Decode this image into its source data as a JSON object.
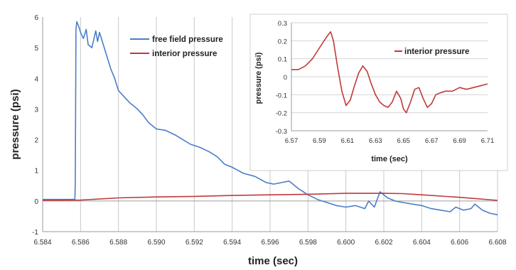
{
  "chart_data": [
    {
      "type": "line",
      "xlabel": "time (sec)",
      "ylabel": "pressure (psi)",
      "xlim": [
        6.584,
        6.608
      ],
      "ylim": [
        -1,
        6
      ],
      "x_ticks": [
        "6.584",
        "6.586",
        "6.588",
        "6.590",
        "6.592",
        "6.594",
        "6.596",
        "6.598",
        "6.600",
        "6.602",
        "6.604",
        "6.606",
        "6.608"
      ],
      "y_ticks": [
        "-1",
        "0",
        "1",
        "2",
        "3",
        "4",
        "5",
        "6"
      ],
      "grid": "vertical",
      "legend_position": "top-center",
      "series": [
        {
          "name": "free field pressure",
          "color": "#4a7ec8",
          "x": [
            6.584,
            6.5857,
            6.58572,
            6.58576,
            6.5858,
            6.5859,
            6.586,
            6.58615,
            6.5863,
            6.5864,
            6.5866,
            6.5868,
            6.5869,
            6.587,
            6.5873,
            6.5876,
            6.5878,
            6.588,
            6.5883,
            6.5886,
            6.589,
            6.5893,
            6.5896,
            6.59,
            6.5905,
            6.591,
            6.5914,
            6.5918,
            6.5923,
            6.5928,
            6.5932,
            6.5936,
            6.594,
            6.5946,
            6.5952,
            6.5958,
            6.5962,
            6.5966,
            6.597,
            6.5975,
            6.598,
            6.5985,
            6.599,
            6.5995,
            6.6,
            6.6005,
            6.601,
            6.6012,
            6.6015,
            6.6018,
            6.6022,
            6.6026,
            6.603,
            6.6035,
            6.604,
            6.6045,
            6.605,
            6.6055,
            6.6058,
            6.6062,
            6.6066,
            6.6068,
            6.6072,
            6.6076,
            6.608
          ],
          "y": [
            0.05,
            0.05,
            0.5,
            5.6,
            5.85,
            5.7,
            5.5,
            5.3,
            5.6,
            5.1,
            5.0,
            5.55,
            5.2,
            5.5,
            4.9,
            4.3,
            4.0,
            3.6,
            3.4,
            3.2,
            3.0,
            2.8,
            2.55,
            2.35,
            2.3,
            2.15,
            2.0,
            1.85,
            1.75,
            1.6,
            1.45,
            1.2,
            1.1,
            0.9,
            0.8,
            0.6,
            0.55,
            0.6,
            0.65,
            0.4,
            0.2,
            0.05,
            -0.05,
            -0.15,
            -0.2,
            -0.15,
            -0.25,
            0.0,
            -0.2,
            0.3,
            0.1,
            0.0,
            -0.05,
            -0.1,
            -0.15,
            -0.25,
            -0.3,
            -0.35,
            -0.2,
            -0.3,
            -0.25,
            -0.1,
            -0.3,
            -0.4,
            -0.45
          ]
        },
        {
          "name": "interior pressure",
          "color": "#c0393b",
          "x": [
            6.584,
            6.586,
            6.588,
            6.59,
            6.592,
            6.594,
            6.596,
            6.598,
            6.6,
            6.602,
            6.603,
            6.604,
            6.606,
            6.608
          ],
          "y": [
            0.02,
            0.03,
            0.1,
            0.13,
            0.15,
            0.18,
            0.2,
            0.22,
            0.25,
            0.25,
            0.24,
            0.2,
            0.12,
            0.02
          ]
        }
      ]
    },
    {
      "type": "line",
      "xlabel": "time (sec)",
      "ylabel": "pressure (psi)",
      "xlim": [
        6.57,
        6.71
      ],
      "ylim": [
        -0.3,
        0.3
      ],
      "x_ticks": [
        "6.57",
        "6.59",
        "6.61",
        "6.63",
        "6.65",
        "6.67",
        "6.69",
        "6.71"
      ],
      "y_ticks": [
        "0.3",
        "0.2",
        "0.1",
        "0",
        "-0.1",
        "-0.2",
        "-0.3"
      ],
      "grid": "horizontal",
      "legend_position": "top-right",
      "series": [
        {
          "name": "interior pressure",
          "color": "#c0393b",
          "x": [
            6.57,
            6.575,
            6.58,
            6.585,
            6.59,
            6.595,
            6.598,
            6.6,
            6.603,
            6.606,
            6.609,
            6.612,
            6.615,
            6.618,
            6.621,
            6.624,
            6.627,
            6.63,
            6.633,
            6.636,
            6.639,
            6.642,
            6.645,
            6.648,
            6.65,
            6.652,
            6.655,
            6.658,
            6.661,
            6.664,
            6.667,
            6.67,
            6.673,
            6.676,
            6.68,
            6.685,
            6.69,
            6.695,
            6.7,
            6.705,
            6.71
          ],
          "y": [
            0.04,
            0.04,
            0.06,
            0.1,
            0.16,
            0.22,
            0.25,
            0.2,
            0.05,
            -0.08,
            -0.16,
            -0.13,
            -0.05,
            0.02,
            0.06,
            0.03,
            -0.04,
            -0.1,
            -0.14,
            -0.16,
            -0.17,
            -0.14,
            -0.08,
            -0.12,
            -0.18,
            -0.2,
            -0.14,
            -0.07,
            -0.06,
            -0.12,
            -0.17,
            -0.15,
            -0.1,
            -0.09,
            -0.08,
            -0.08,
            -0.06,
            -0.07,
            -0.06,
            -0.05,
            -0.04
          ]
        }
      ]
    }
  ]
}
